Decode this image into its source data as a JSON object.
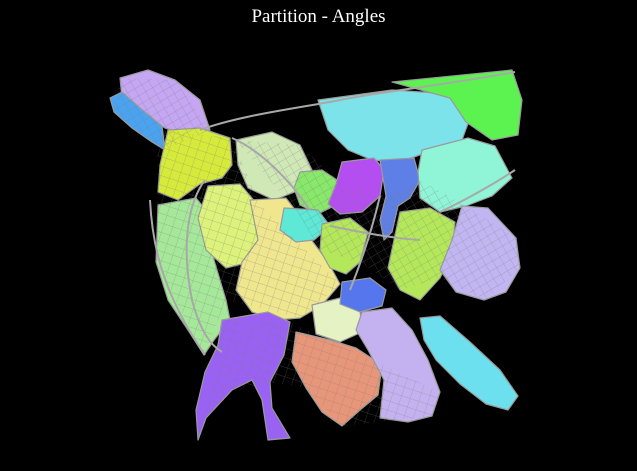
{
  "title": "Partition - Angles",
  "map": {
    "background": "#000000",
    "street_color": "#8a8a8a",
    "outline_color": "#9a9a9a",
    "regions": [
      {
        "id": "northwest-lilac",
        "color": "#c4a6f2"
      },
      {
        "id": "northwest-blue",
        "color": "#4aa3f0"
      },
      {
        "id": "northwest-yellow",
        "color": "#d6ea3c"
      },
      {
        "id": "north-cyan",
        "color": "#7de3ea"
      },
      {
        "id": "northeast-green",
        "color": "#5cf250"
      },
      {
        "id": "north-pale-green",
        "color": "#cfe8b6"
      },
      {
        "id": "central-green",
        "color": "#88e86a"
      },
      {
        "id": "central-magenta",
        "color": "#b54ef0"
      },
      {
        "id": "central-blue",
        "color": "#5e7fe6"
      },
      {
        "id": "east-mint",
        "color": "#8ff5d6"
      },
      {
        "id": "west-light-green",
        "color": "#a6e89a"
      },
      {
        "id": "park-yellow",
        "color": "#dcf27a"
      },
      {
        "id": "central-khaki",
        "color": "#efe68e"
      },
      {
        "id": "central-teal",
        "color": "#5ee8d6"
      },
      {
        "id": "river-green",
        "color": "#b4e85a"
      },
      {
        "id": "east-lavender",
        "color": "#c2b6f2"
      },
      {
        "id": "south-purple",
        "color": "#9a62f2"
      },
      {
        "id": "south-salmon",
        "color": "#e8967a"
      },
      {
        "id": "south-cream",
        "color": "#e4f2c4"
      },
      {
        "id": "south-lavender",
        "color": "#c4b2f0"
      },
      {
        "id": "south-blue",
        "color": "#5576ec"
      },
      {
        "id": "southeast-cyan",
        "color": "#6ce0ee"
      }
    ]
  }
}
